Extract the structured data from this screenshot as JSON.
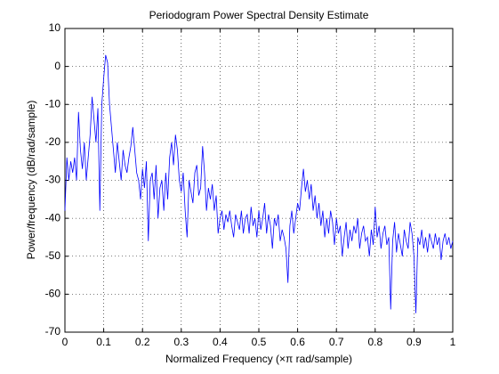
{
  "chart_data": {
    "type": "line",
    "title": "Periodogram Power Spectral Density Estimate",
    "x_label": "Normalized Frequency  (×π rad/sample)",
    "y_label": "Power/frequency (dB/rad/sample)",
    "color": "#0000ff",
    "grid": true,
    "xlim": [
      0,
      1
    ],
    "xticks": [
      0,
      0.1,
      0.2,
      0.3,
      0.4,
      0.5,
      0.6,
      0.7,
      0.8,
      0.9,
      1
    ],
    "ylim": [
      -70,
      10
    ],
    "yticks": [
      -70,
      -60,
      -50,
      -40,
      -30,
      -20,
      -10,
      0,
      10
    ],
    "x": [
      0,
      0.005,
      0.01,
      0.015,
      0.02,
      0.025,
      0.03,
      0.035,
      0.04,
      0.045,
      0.05,
      0.055,
      0.06,
      0.065,
      0.07,
      0.075,
      0.08,
      0.085,
      0.09,
      0.095,
      0.1,
      0.105,
      0.11,
      0.115,
      0.12,
      0.125,
      0.13,
      0.135,
      0.14,
      0.145,
      0.15,
      0.155,
      0.16,
      0.165,
      0.17,
      0.175,
      0.18,
      0.185,
      0.19,
      0.195,
      0.2,
      0.205,
      0.21,
      0.215,
      0.22,
      0.225,
      0.23,
      0.235,
      0.24,
      0.245,
      0.25,
      0.255,
      0.26,
      0.265,
      0.27,
      0.275,
      0.28,
      0.285,
      0.29,
      0.295,
      0.3,
      0.305,
      0.31,
      0.315,
      0.32,
      0.325,
      0.33,
      0.335,
      0.34,
      0.345,
      0.35,
      0.355,
      0.36,
      0.365,
      0.37,
      0.375,
      0.38,
      0.385,
      0.39,
      0.395,
      0.4,
      0.405,
      0.41,
      0.415,
      0.42,
      0.425,
      0.43,
      0.435,
      0.44,
      0.445,
      0.45,
      0.455,
      0.46,
      0.465,
      0.47,
      0.475,
      0.48,
      0.485,
      0.49,
      0.495,
      0.5,
      0.505,
      0.51,
      0.515,
      0.52,
      0.525,
      0.53,
      0.535,
      0.54,
      0.545,
      0.55,
      0.555,
      0.56,
      0.565,
      0.57,
      0.575,
      0.58,
      0.585,
      0.59,
      0.595,
      0.6,
      0.605,
      0.61,
      0.615,
      0.62,
      0.625,
      0.63,
      0.635,
      0.64,
      0.645,
      0.65,
      0.655,
      0.66,
      0.665,
      0.67,
      0.675,
      0.68,
      0.685,
      0.69,
      0.695,
      0.7,
      0.705,
      0.71,
      0.715,
      0.72,
      0.725,
      0.73,
      0.735,
      0.74,
      0.745,
      0.75,
      0.755,
      0.76,
      0.765,
      0.77,
      0.775,
      0.78,
      0.785,
      0.79,
      0.795,
      0.8,
      0.805,
      0.81,
      0.815,
      0.82,
      0.825,
      0.83,
      0.835,
      0.84,
      0.845,
      0.85,
      0.855,
      0.86,
      0.865,
      0.87,
      0.875,
      0.88,
      0.885,
      0.89,
      0.895,
      0.9,
      0.905,
      0.91,
      0.915,
      0.92,
      0.925,
      0.93,
      0.935,
      0.94,
      0.945,
      0.95,
      0.955,
      0.96,
      0.965,
      0.97,
      0.975,
      0.98,
      0.985,
      0.99,
      0.995,
      1
    ],
    "values": [
      -38,
      -24,
      -30,
      -25,
      -28,
      -24,
      -30,
      -12,
      -22,
      -27,
      -20,
      -30,
      -24,
      -18,
      -8,
      -14,
      -20,
      -11,
      -38,
      -10,
      -3,
      3,
      1,
      -10,
      -16,
      -22,
      -28,
      -20,
      -25,
      -30,
      -22,
      -26,
      -28,
      -24,
      -21,
      -16,
      -22,
      -28,
      -30,
      -35,
      -27,
      -32,
      -25,
      -46,
      -30,
      -28,
      -35,
      -26,
      -40,
      -32,
      -30,
      -38,
      -28,
      -35,
      -24,
      -20,
      -26,
      -18,
      -22,
      -30,
      -33,
      -28,
      -38,
      -45,
      -30,
      -33,
      -36,
      -28,
      -26,
      -34,
      -32,
      -21,
      -28,
      -38,
      -32,
      -35,
      -31,
      -38,
      -34,
      -44,
      -40,
      -38,
      -43,
      -39,
      -41,
      -38,
      -42,
      -45,
      -39,
      -41,
      -43,
      -38,
      -44,
      -40,
      -39,
      -44,
      -37,
      -42,
      -40,
      -45,
      -38,
      -43,
      -40,
      -36,
      -44,
      -39,
      -42,
      -48,
      -40,
      -42,
      -39,
      -46,
      -43,
      -45,
      -48,
      -57,
      -42,
      -38,
      -44,
      -40,
      -36,
      -38,
      -32,
      -27,
      -33,
      -30,
      -35,
      -31,
      -38,
      -34,
      -40,
      -36,
      -42,
      -38,
      -45,
      -40,
      -44,
      -38,
      -41,
      -47,
      -40,
      -44,
      -42,
      -50,
      -45,
      -41,
      -48,
      -43,
      -46,
      -42,
      -44,
      -40,
      -48,
      -44,
      -42,
      -46,
      -45,
      -50,
      -43,
      -47,
      -37,
      -45,
      -42,
      -48,
      -44,
      -42,
      -47,
      -45,
      -64,
      -46,
      -41,
      -49,
      -44,
      -47,
      -50,
      -43,
      -46,
      -48,
      -41,
      -44,
      -50,
      -65,
      -45,
      -47,
      -43,
      -48,
      -45,
      -49,
      -44,
      -46,
      -48,
      -44,
      -47,
      -45,
      -51,
      -46,
      -44,
      -47,
      -45,
      -48,
      -46
    ]
  }
}
